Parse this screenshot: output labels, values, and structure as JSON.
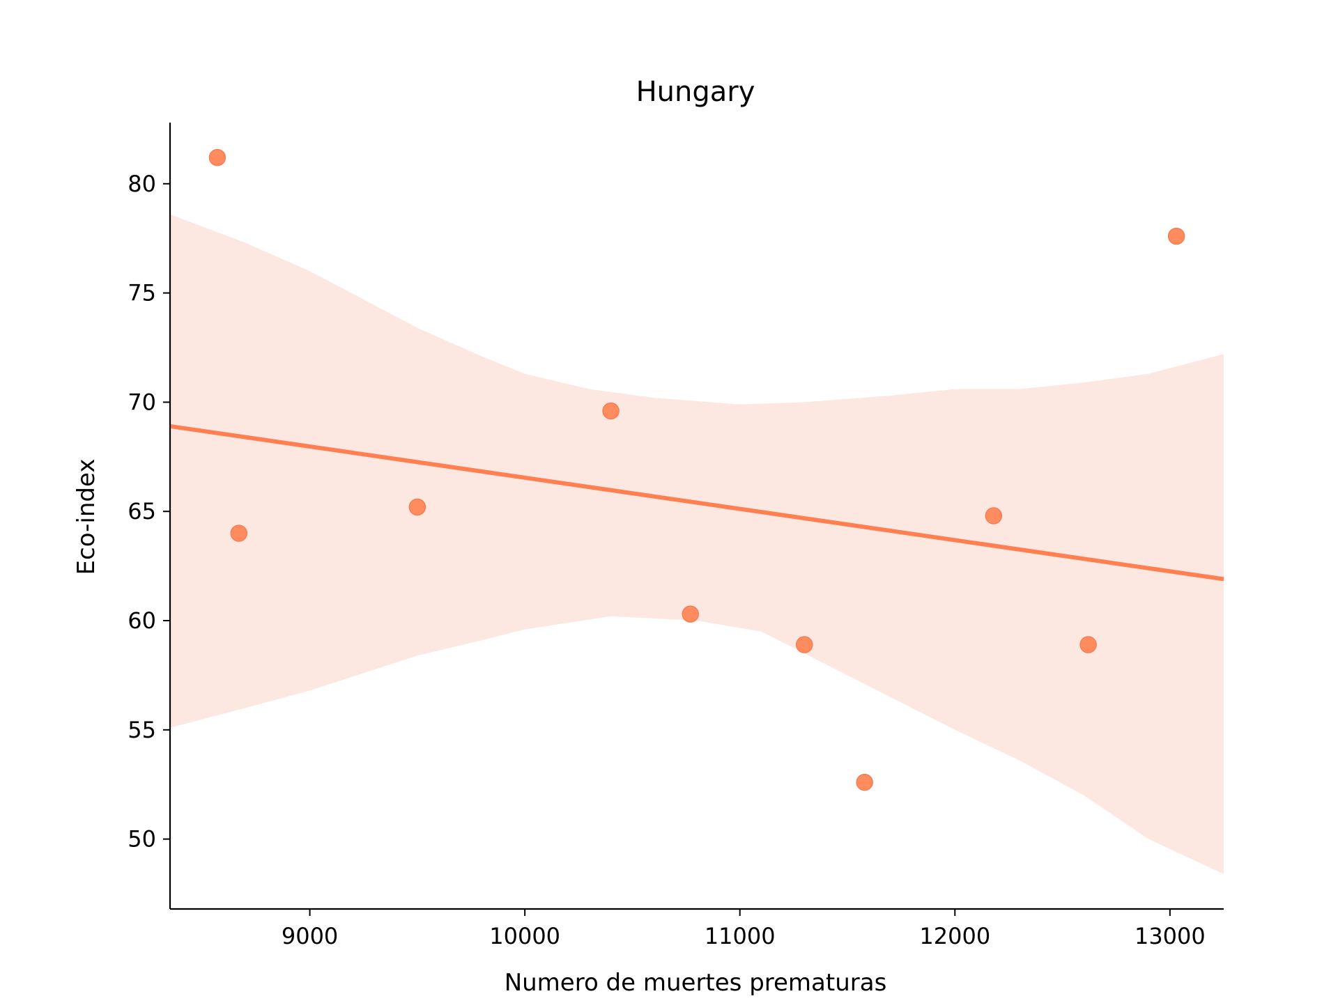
{
  "chart_data": {
    "type": "scatter",
    "title": "Hungary",
    "xlabel": "Numero de muertes prematuras",
    "ylabel": "Eco-index",
    "xlim": [
      8350,
      13250
    ],
    "ylim": [
      46.8,
      82.8
    ],
    "x_ticks": [
      9000,
      10000,
      11000,
      12000,
      13000
    ],
    "y_ticks": [
      50,
      55,
      60,
      65,
      70,
      75,
      80
    ],
    "grid": false,
    "legend": "none",
    "colors": {
      "marker": "#ff8c5f",
      "line": "#ff7f50",
      "band": "#fde7e1",
      "axis": "#000000"
    },
    "series": [
      {
        "points": [
          {
            "x": 8570,
            "y": 81.2
          },
          {
            "x": 8670,
            "y": 64.0
          },
          {
            "x": 9500,
            "y": 65.2
          },
          {
            "x": 10400,
            "y": 69.6
          },
          {
            "x": 10770,
            "y": 60.3
          },
          {
            "x": 11300,
            "y": 58.9
          },
          {
            "x": 11580,
            "y": 52.6
          },
          {
            "x": 12180,
            "y": 64.8
          },
          {
            "x": 12620,
            "y": 58.9
          },
          {
            "x": 13030,
            "y": 77.6
          }
        ]
      }
    ],
    "regression": {
      "line": [
        {
          "x": 8350,
          "y": 68.9
        },
        {
          "x": 13250,
          "y": 61.9
        }
      ],
      "ci_upper": [
        {
          "x": 8350,
          "y": 78.6
        },
        {
          "x": 8700,
          "y": 77.3
        },
        {
          "x": 9000,
          "y": 76.0
        },
        {
          "x": 9500,
          "y": 73.4
        },
        {
          "x": 9800,
          "y": 72.1
        },
        {
          "x": 10000,
          "y": 71.3
        },
        {
          "x": 10300,
          "y": 70.6
        },
        {
          "x": 10600,
          "y": 70.2
        },
        {
          "x": 11000,
          "y": 69.9
        },
        {
          "x": 11300,
          "y": 70.0
        },
        {
          "x": 11700,
          "y": 70.3
        },
        {
          "x": 12000,
          "y": 70.6
        },
        {
          "x": 12300,
          "y": 70.6
        },
        {
          "x": 12600,
          "y": 70.9
        },
        {
          "x": 12900,
          "y": 71.3
        },
        {
          "x": 13250,
          "y": 72.2
        }
      ],
      "ci_lower": [
        {
          "x": 8350,
          "y": 55.1
        },
        {
          "x": 8700,
          "y": 56.0
        },
        {
          "x": 9000,
          "y": 56.8
        },
        {
          "x": 9500,
          "y": 58.4
        },
        {
          "x": 9800,
          "y": 59.1
        },
        {
          "x": 10000,
          "y": 59.6
        },
        {
          "x": 10400,
          "y": 60.2
        },
        {
          "x": 10800,
          "y": 60.0
        },
        {
          "x": 11100,
          "y": 59.5
        },
        {
          "x": 11400,
          "y": 58.0
        },
        {
          "x": 11700,
          "y": 56.5
        },
        {
          "x": 12000,
          "y": 55.0
        },
        {
          "x": 12300,
          "y": 53.6
        },
        {
          "x": 12600,
          "y": 52.0
        },
        {
          "x": 12900,
          "y": 50.0
        },
        {
          "x": 13250,
          "y": 48.4
        }
      ]
    }
  }
}
